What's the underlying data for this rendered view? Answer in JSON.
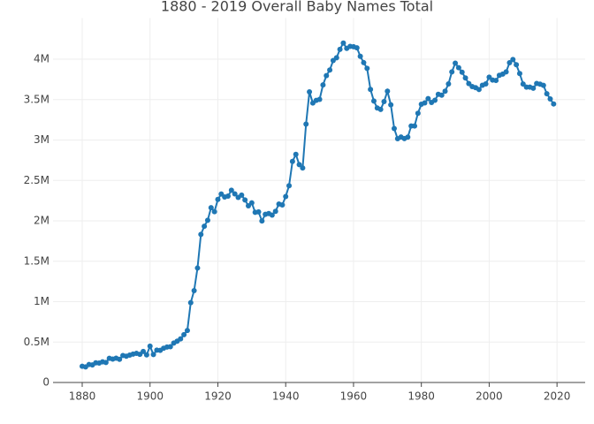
{
  "chart_data": {
    "type": "line",
    "title": "1880 - 2019 Overall Baby Names Total",
    "x": [
      1880,
      1881,
      1882,
      1883,
      1884,
      1885,
      1886,
      1887,
      1888,
      1889,
      1890,
      1891,
      1892,
      1893,
      1894,
      1895,
      1896,
      1897,
      1898,
      1899,
      1900,
      1901,
      1902,
      1903,
      1904,
      1905,
      1906,
      1907,
      1908,
      1909,
      1910,
      1911,
      1912,
      1913,
      1914,
      1915,
      1916,
      1917,
      1918,
      1919,
      1920,
      1921,
      1922,
      1923,
      1924,
      1925,
      1926,
      1927,
      1928,
      1929,
      1930,
      1931,
      1932,
      1933,
      1934,
      1935,
      1936,
      1937,
      1938,
      1939,
      1940,
      1941,
      1942,
      1943,
      1944,
      1945,
      1946,
      1947,
      1948,
      1949,
      1950,
      1951,
      1952,
      1953,
      1954,
      1955,
      1956,
      1957,
      1958,
      1959,
      1960,
      1961,
      1962,
      1963,
      1964,
      1965,
      1966,
      1967,
      1968,
      1969,
      1970,
      1971,
      1972,
      1973,
      1974,
      1975,
      1976,
      1977,
      1978,
      1979,
      1980,
      1981,
      1982,
      1983,
      1984,
      1985,
      1986,
      1987,
      1988,
      1989,
      1990,
      1991,
      1992,
      1993,
      1994,
      1995,
      1996,
      1997,
      1998,
      1999,
      2000,
      2001,
      2002,
      2003,
      2004,
      2005,
      2006,
      2007,
      2008,
      2009,
      2010,
      2011,
      2012,
      2013,
      2014,
      2015,
      2016,
      2017,
      2018,
      2019
    ],
    "series": [
      {
        "color": "#1f77b4",
        "values": [
          201000,
          193000,
          222000,
          217000,
          243000,
          241000,
          255000,
          247000,
          299000,
          289000,
          301000,
          287000,
          334000,
          325000,
          339000,
          351000,
          360000,
          349000,
          384000,
          341000,
          450000,
          345000,
          400000,
          397000,
          423000,
          439000,
          443000,
          488000,
          511000,
          540000,
          591000,
          644000,
          988000,
          1137000,
          1416000,
          1832000,
          1933000,
          2007000,
          2163000,
          2114000,
          2265000,
          2332000,
          2295000,
          2306000,
          2379000,
          2333000,
          2290000,
          2318000,
          2258000,
          2186000,
          2222000,
          2105000,
          2111000,
          1998000,
          2081000,
          2090000,
          2071000,
          2118000,
          2208000,
          2197000,
          2301000,
          2435000,
          2735000,
          2822000,
          2695000,
          2654000,
          3197000,
          3596000,
          3457000,
          3491000,
          3503000,
          3682000,
          3796000,
          3866000,
          3983000,
          4018000,
          4122000,
          4200000,
          4134000,
          4158000,
          4155000,
          4141000,
          4036000,
          3957000,
          3887000,
          3626000,
          3482000,
          3396000,
          3378000,
          3475000,
          3604000,
          3436000,
          3142000,
          3016000,
          3037000,
          3018000,
          3035000,
          3174000,
          3174000,
          3331000,
          3443000,
          3459000,
          3512000,
          3465000,
          3492000,
          3566000,
          3554000,
          3604000,
          3694000,
          3843000,
          3951000,
          3895000,
          3839000,
          3768000,
          3698000,
          3661000,
          3647000,
          3625000,
          3678000,
          3694000,
          3778000,
          3742000,
          3737000,
          3800000,
          3816000,
          3843000,
          3956000,
          3996000,
          3932000,
          3822000,
          3693000,
          3654000,
          3654000,
          3641000,
          3700000,
          3691000,
          3676000,
          3573000,
          3508000,
          3446000
        ]
      }
    ],
    "xlim": [
      1871.4,
      2028.3
    ],
    "xticks": [
      1880,
      1900,
      1920,
      1940,
      1960,
      1980,
      2000,
      2020
    ],
    "ylim": [
      0,
      4400000
    ],
    "yticks": [
      {
        "value": 0,
        "label": "0"
      },
      {
        "value": 500000,
        "label": "0.5M"
      },
      {
        "value": 1000000,
        "label": "1M"
      },
      {
        "value": 1500000,
        "label": "1.5M"
      },
      {
        "value": 2000000,
        "label": "2M"
      },
      {
        "value": 2500000,
        "label": "2.5M"
      },
      {
        "value": 3000000,
        "label": "3M"
      },
      {
        "value": 3500000,
        "label": "3.5M"
      },
      {
        "value": 4000000,
        "label": "4M"
      }
    ],
    "grid": true
  }
}
